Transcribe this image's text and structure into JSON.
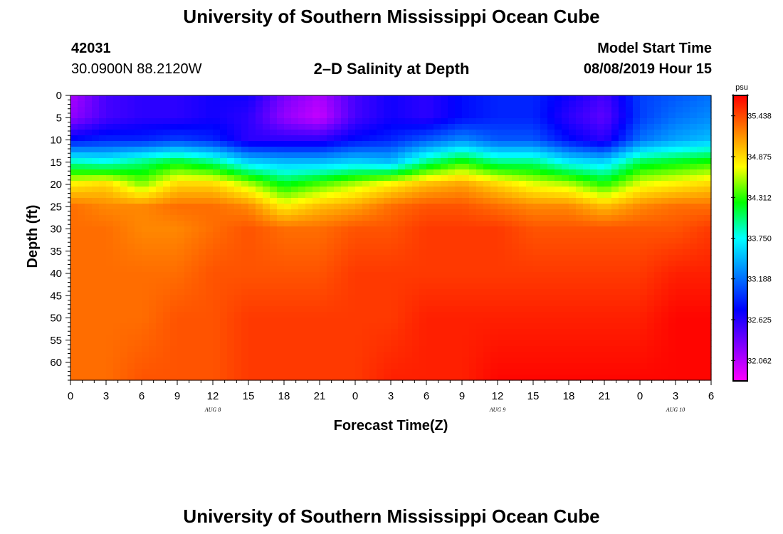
{
  "header": {
    "title_top": "University of Southern Mississippi Ocean Cube",
    "station_id": "42031",
    "coordinates": "30.0900N 88.2120W",
    "plot_title": "2–D Salinity at Depth",
    "model_start_label": "Model Start Time",
    "model_start_value": "08/08/2019 Hour 15",
    "title_bottom": "University of Southern Mississippi Ocean Cube"
  },
  "chart_data": {
    "type": "heatmap",
    "title": "2–D Salinity at Depth",
    "xlabel": "Forecast Time(Z)",
    "ylabel": "Depth (ft)",
    "x_ticks": [
      "0",
      "3",
      "6",
      "9",
      "12",
      "15",
      "18",
      "21",
      "0",
      "3",
      "6",
      "9",
      "12",
      "15",
      "18",
      "21",
      "0",
      "3",
      "6"
    ],
    "x_range_hours": [
      0,
      54
    ],
    "date_labels": [
      {
        "label": "AUG 8",
        "hour": 12
      },
      {
        "label": "AUG 9",
        "hour": 36
      },
      {
        "label": "AUG 10",
        "hour": 51
      }
    ],
    "y_ticks": [
      0,
      5,
      10,
      15,
      20,
      25,
      30,
      35,
      40,
      45,
      50,
      55,
      60
    ],
    "y_range_ft": [
      0,
      64
    ],
    "colorbar": {
      "unit": "psu",
      "tick_values": [
        35.438,
        34.875,
        34.312,
        33.75,
        33.188,
        32.625,
        32.062
      ],
      "tick_labels": [
        "35.438",
        "34.875",
        "34.312",
        "33.750",
        "33.188",
        "32.625",
        "32.062"
      ],
      "range": [
        31.78,
        35.72
      ]
    },
    "colors": {
      "scale": [
        "#ff00ff",
        "#8000ff",
        "#0000ff",
        "#0080ff",
        "#00ffff",
        "#00ff00",
        "#ffff00",
        "#ff8000",
        "#ff0000"
      ]
    },
    "grid_hours": [
      0,
      3,
      6,
      9,
      12,
      15,
      18,
      21,
      24,
      27,
      30,
      33,
      36,
      39,
      42,
      45,
      48,
      51,
      54
    ],
    "grid_depths_ft": [
      0,
      5,
      10,
      15,
      20,
      25,
      30,
      40,
      50,
      64
    ],
    "salinity": [
      [
        32.1,
        32.5,
        32.6,
        32.6,
        32.7,
        32.7,
        32.3,
        32.1,
        32.5,
        32.7,
        32.6,
        32.8,
        32.9,
        32.9,
        32.7,
        32.5,
        33.0,
        33.1,
        33.2
      ],
      [
        32.2,
        32.5,
        32.6,
        32.6,
        32.7,
        32.6,
        32.2,
        32.0,
        32.5,
        32.7,
        32.6,
        32.8,
        32.9,
        32.9,
        32.6,
        32.4,
        33.0,
        33.2,
        33.3
      ],
      [
        32.8,
        32.9,
        32.9,
        33.0,
        32.9,
        32.6,
        32.6,
        32.6,
        32.8,
        32.9,
        33.1,
        33.3,
        33.1,
        33.1,
        32.8,
        32.6,
        33.2,
        33.4,
        33.5
      ],
      [
        33.9,
        33.8,
        34.0,
        34.2,
        34.0,
        33.6,
        33.5,
        33.5,
        33.6,
        33.5,
        34.0,
        34.3,
        34.0,
        34.0,
        33.7,
        33.6,
        34.1,
        34.2,
        34.3
      ],
      [
        34.8,
        34.9,
        34.5,
        34.9,
        34.9,
        34.6,
        34.2,
        34.4,
        34.6,
        34.8,
        35.0,
        35.1,
        34.9,
        34.7,
        34.6,
        34.3,
        34.7,
        34.8,
        34.9
      ],
      [
        35.3,
        35.2,
        35.2,
        35.3,
        35.3,
        35.2,
        34.8,
        35.0,
        35.1,
        35.3,
        35.4,
        35.4,
        35.3,
        35.2,
        35.2,
        35.0,
        35.2,
        35.3,
        35.3
      ],
      [
        35.3,
        35.3,
        35.2,
        35.2,
        35.3,
        35.4,
        35.3,
        35.3,
        35.4,
        35.4,
        35.5,
        35.5,
        35.5,
        35.4,
        35.4,
        35.4,
        35.4,
        35.4,
        35.5
      ],
      [
        35.3,
        35.3,
        35.3,
        35.3,
        35.4,
        35.4,
        35.4,
        35.4,
        35.5,
        35.5,
        35.5,
        35.5,
        35.5,
        35.5,
        35.5,
        35.5,
        35.5,
        35.6,
        35.6
      ],
      [
        35.3,
        35.3,
        35.3,
        35.4,
        35.4,
        35.5,
        35.5,
        35.5,
        35.5,
        35.5,
        35.6,
        35.6,
        35.6,
        35.6,
        35.6,
        35.6,
        35.6,
        35.7,
        35.7
      ],
      [
        35.3,
        35.3,
        35.4,
        35.4,
        35.4,
        35.5,
        35.5,
        35.5,
        35.5,
        35.6,
        35.6,
        35.6,
        35.7,
        35.7,
        35.7,
        35.7,
        35.7,
        35.7,
        35.7
      ]
    ]
  }
}
